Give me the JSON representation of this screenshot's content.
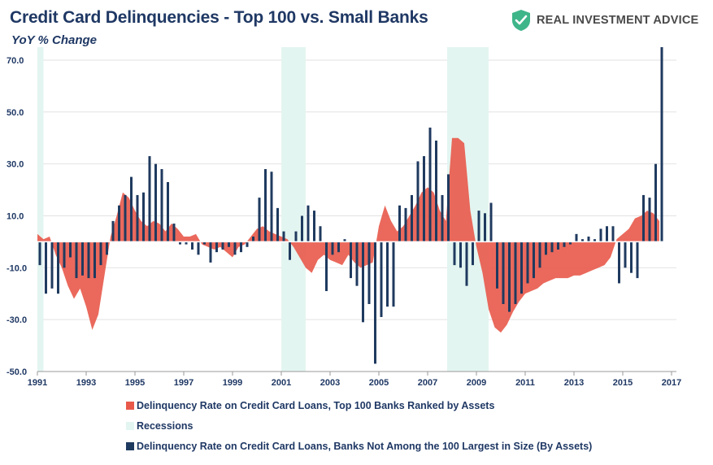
{
  "header": {
    "title": "Credit Card Delinquencies - Top 100 vs. Small Banks",
    "subtitle": "YoY % Change",
    "brand": "REAL INVESTMENT ADVICE",
    "brand_icon": "shield-check-icon"
  },
  "colors": {
    "top100": "#e8594a",
    "small": "#1f3a5f",
    "recession": "#e3f5f0",
    "text": "#1f3864",
    "brand": "#3fb58a"
  },
  "chart_data": {
    "type": "bar",
    "title": "Credit Card Delinquencies - Top 100 vs. Small Banks",
    "subtitle": "YoY % Change",
    "xlabel": "",
    "ylabel": "",
    "xlim": [
      1991.0,
      2017.2
    ],
    "ylim": [
      -50,
      75
    ],
    "x_ticks": [
      "1991",
      "1993",
      "1995",
      "1997",
      "1999",
      "2001",
      "2003",
      "2005",
      "2007",
      "2009",
      "2011",
      "2013",
      "2015",
      "2017"
    ],
    "y_ticks": [
      "70.0",
      "50.0",
      "30.0",
      "10.0",
      "-10.0",
      "-30.0",
      "-50.0"
    ],
    "grid": true,
    "legend_position": "bottom",
    "legend": [
      "Delinquency Rate on Credit Card Loans, Top 100 Banks Ranked by Assets",
      "Recessions",
      "Delinquency Rate on Credit Card Loans, Banks Not Among the 100 Largest in Size (By Assets)"
    ],
    "recessions": [
      [
        1991.0,
        1991.25
      ],
      [
        2001.0,
        2002.0
      ],
      [
        2007.8,
        2009.5
      ]
    ],
    "area_series": {
      "name": "Delinquency Rate on Credit Card Loans, Top 100 Banks Ranked by Assets",
      "x": [
        1991.0,
        1991.25,
        1991.5,
        1991.75,
        1992.0,
        1992.25,
        1992.5,
        1992.75,
        1993.0,
        1993.25,
        1993.5,
        1993.75,
        1994.0,
        1994.25,
        1994.5,
        1994.75,
        1995.0,
        1995.25,
        1995.5,
        1995.75,
        1996.0,
        1996.25,
        1996.5,
        1996.75,
        1997.0,
        1997.25,
        1997.5,
        1997.75,
        1998.0,
        1998.25,
        1998.5,
        1998.75,
        1999.0,
        1999.25,
        1999.5,
        1999.75,
        2000.0,
        2000.25,
        2000.5,
        2000.75,
        2001.0,
        2001.25,
        2001.5,
        2001.75,
        2002.0,
        2002.25,
        2002.5,
        2002.75,
        2003.0,
        2003.25,
        2003.5,
        2003.75,
        2004.0,
        2004.25,
        2004.5,
        2004.75,
        2005.0,
        2005.25,
        2005.5,
        2005.75,
        2006.0,
        2006.25,
        2006.5,
        2006.75,
        2007.0,
        2007.25,
        2007.5,
        2007.75,
        2008.0,
        2008.25,
        2008.5,
        2008.75,
        2009.0,
        2009.25,
        2009.5,
        2009.75,
        2010.0,
        2010.25,
        2010.5,
        2010.75,
        2011.0,
        2011.25,
        2011.5,
        2011.75,
        2012.0,
        2012.25,
        2012.5,
        2012.75,
        2013.0,
        2013.25,
        2013.5,
        2013.75,
        2014.0,
        2014.25,
        2014.5,
        2014.75,
        2015.0,
        2015.25,
        2015.5,
        2015.75,
        2016.0,
        2016.25,
        2016.5
      ],
      "values": [
        3,
        1,
        2,
        -5,
        -10,
        -17,
        -22,
        -18,
        -25,
        -34,
        -28,
        -13,
        2,
        10,
        19,
        17,
        12,
        8,
        6,
        8,
        7,
        4,
        7,
        5,
        2,
        2,
        3,
        -1,
        -2,
        -3,
        -2,
        -4,
        -6,
        -2,
        -1,
        2,
        5,
        6,
        4,
        3,
        2,
        1,
        -2,
        -6,
        -10,
        -12,
        -7,
        -5,
        -7,
        -8,
        -9,
        -5,
        -8,
        -10,
        -9,
        -8,
        6,
        14,
        8,
        4,
        6,
        10,
        14,
        19,
        21,
        19,
        12,
        8,
        40,
        40,
        38,
        12,
        -2,
        -12,
        -26,
        -33,
        -35,
        -32,
        -27,
        -23,
        -20,
        -19,
        -18,
        -16,
        -15,
        -14,
        -14,
        -14,
        -13,
        -13,
        -12,
        -11,
        -10,
        -9,
        -6,
        1,
        3,
        5,
        9,
        10,
        12,
        11,
        8
      ]
    },
    "bar_series": {
      "name": "Delinquency Rate on Credit Card Loans, Banks Not Among the 100 Largest in Size (By Assets)",
      "x": [
        1991.0,
        1991.25,
        1991.5,
        1991.75,
        1992.0,
        1992.25,
        1992.5,
        1992.75,
        1993.0,
        1993.25,
        1993.5,
        1993.75,
        1994.0,
        1994.25,
        1994.5,
        1994.75,
        1995.0,
        1995.25,
        1995.5,
        1995.75,
        1996.0,
        1996.25,
        1996.5,
        1996.75,
        1997.0,
        1997.25,
        1997.5,
        1997.75,
        1998.0,
        1998.25,
        1998.5,
        1998.75,
        1999.0,
        1999.25,
        1999.5,
        1999.75,
        2000.0,
        2000.25,
        2000.5,
        2000.75,
        2001.0,
        2001.25,
        2001.5,
        2001.75,
        2002.0,
        2002.25,
        2002.5,
        2002.75,
        2003.0,
        2003.25,
        2003.5,
        2003.75,
        2004.0,
        2004.25,
        2004.5,
        2004.75,
        2005.0,
        2005.25,
        2005.5,
        2005.75,
        2006.0,
        2006.25,
        2006.5,
        2006.75,
        2007.0,
        2007.25,
        2007.5,
        2007.75,
        2008.0,
        2008.25,
        2008.5,
        2008.75,
        2009.0,
        2009.25,
        2009.5,
        2009.75,
        2010.0,
        2010.25,
        2010.5,
        2010.75,
        2011.0,
        2011.25,
        2011.5,
        2011.75,
        2012.0,
        2012.25,
        2012.5,
        2012.75,
        2013.0,
        2013.25,
        2013.5,
        2013.75,
        2014.0,
        2014.25,
        2014.5,
        2014.75,
        2015.0,
        2015.25,
        2015.5,
        2015.75,
        2016.0,
        2016.25,
        2016.5
      ],
      "values": [
        -9,
        -20,
        -18,
        -20,
        -10,
        -6,
        -14,
        -13,
        -14,
        -14,
        -9,
        -5,
        8,
        14,
        18,
        25,
        18,
        19,
        33,
        30,
        28,
        23,
        7,
        -1,
        -1,
        -3,
        -5,
        -1,
        -8,
        -4,
        -3,
        -2,
        -5,
        -4,
        -2,
        2,
        17,
        28,
        27,
        13,
        4,
        -7,
        4,
        10,
        14,
        12,
        6,
        -19,
        -5,
        -4,
        1,
        -14,
        -17,
        -31,
        -24,
        -47,
        -29,
        -25,
        -25,
        14,
        13,
        18,
        31,
        33,
        44,
        39,
        18,
        26,
        -9,
        -10,
        -17,
        -9,
        12,
        11,
        15,
        -18,
        -24,
        -27,
        -24,
        -20,
        -16,
        -14,
        -10,
        -5,
        -4,
        -3,
        -2,
        -1,
        3,
        1,
        2,
        1,
        5,
        6,
        6,
        -16,
        -10,
        -12,
        -14,
        18,
        17,
        30,
        75
      ]
    }
  },
  "legend_labels": {
    "top100": "Delinquency Rate on Credit Card Loans, Top 100 Banks Ranked by Assets",
    "recessions": "Recessions",
    "small": "Delinquency Rate on Credit Card Loans, Banks Not Among the 100 Largest in Size (By Assets)"
  }
}
